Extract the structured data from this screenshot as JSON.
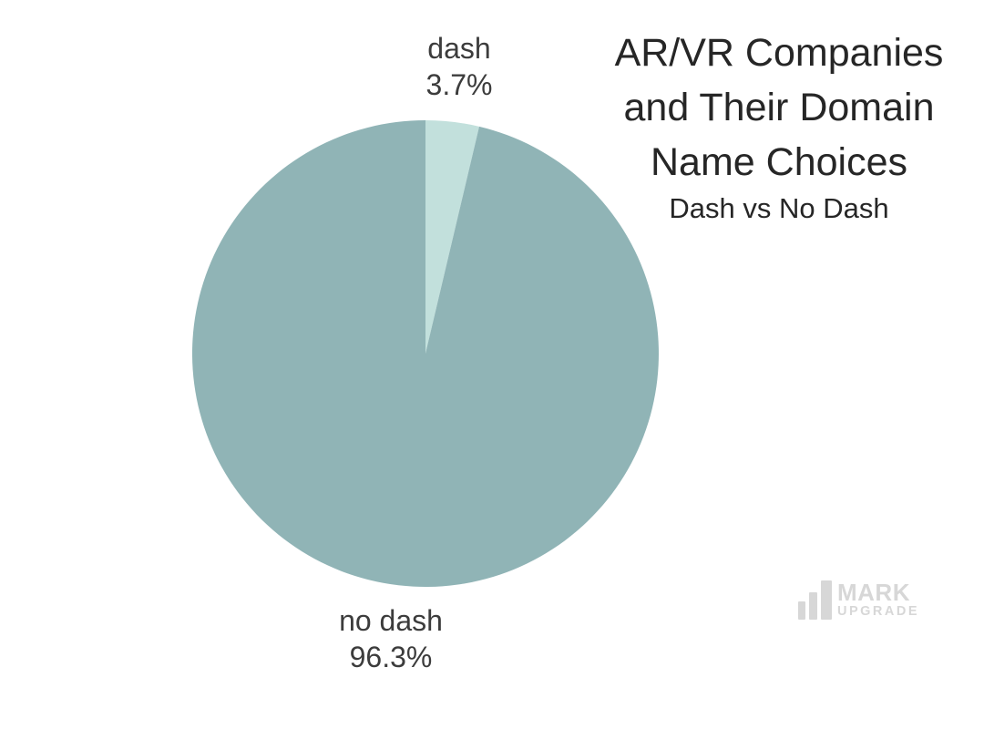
{
  "page": {
    "background": "#ffffff"
  },
  "header": {
    "title_lines": [
      "AR/VR Companies",
      "and Their Domain",
      "Name Choices"
    ],
    "subtitle": "Dash vs No Dash"
  },
  "chart_data": {
    "type": "pie",
    "title": "AR/VR Companies and Their Domain Name Choices",
    "subtitle": "Dash vs No Dash",
    "start_angle_deg": -90,
    "direction": "clockwise",
    "legend": "none",
    "labels": "outside",
    "slices": [
      {
        "label": "dash",
        "value": 3.7,
        "display": "3.7%",
        "color": "#c2e0dc"
      },
      {
        "label": "no dash",
        "value": 96.3,
        "display": "96.3%",
        "color": "#90b4b6"
      }
    ]
  },
  "watermark": {
    "icon": "bar-chart-icon",
    "line1": "MARK",
    "line2": "UPGRADE"
  },
  "colors": {
    "background": "#ffffff",
    "title_text": "#262626",
    "label_text": "#3c3c3c",
    "watermark": "#d7d7d7"
  }
}
